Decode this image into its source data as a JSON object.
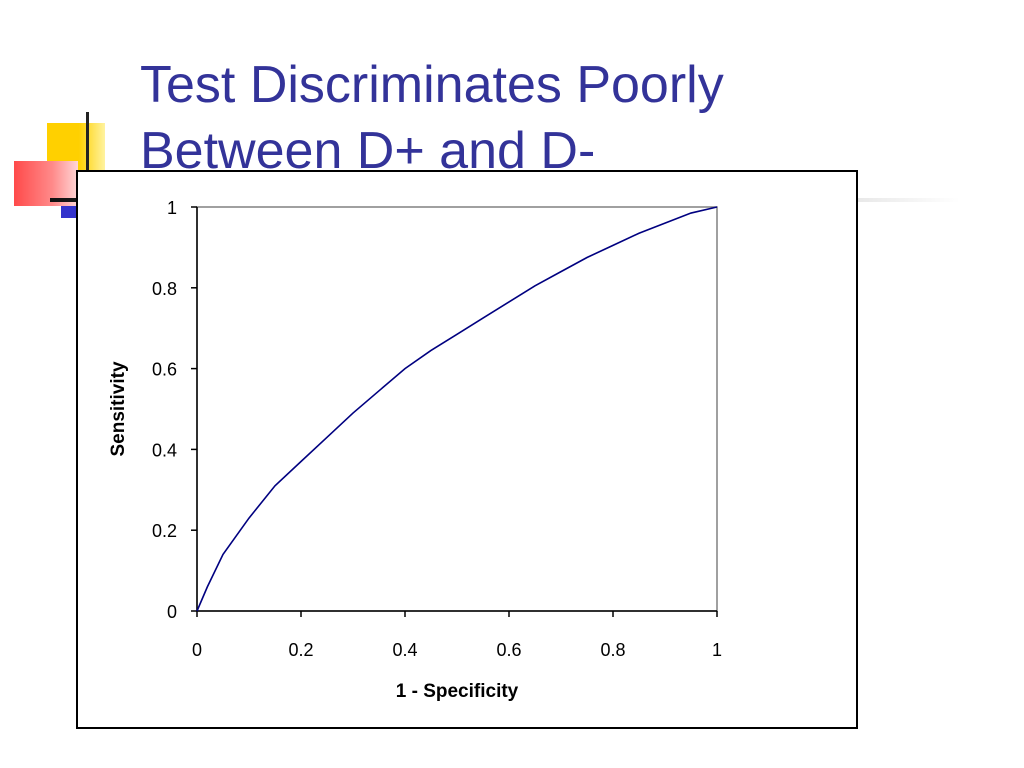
{
  "slide": {
    "title_line1": "Test Discriminates Poorly",
    "title_line2": "Between D+ and D-"
  },
  "colors": {
    "title": "#333399",
    "curve": "#000080",
    "plot_border": "#808080",
    "axis": "#000000"
  },
  "chart_data": {
    "type": "line",
    "title": "",
    "xlabel": "1 - Specificity",
    "ylabel": "Sensitivity",
    "xlim": [
      0,
      1
    ],
    "ylim": [
      0,
      1
    ],
    "x_ticks": [
      "0",
      "0.2",
      "0.4",
      "0.6",
      "0.8",
      "1"
    ],
    "y_ticks": [
      "0",
      "0.2",
      "0.4",
      "0.6",
      "0.8",
      "1"
    ],
    "grid": false,
    "legend": "none",
    "series": [
      {
        "x": [
          0,
          0.02,
          0.05,
          0.1,
          0.15,
          0.2,
          0.25,
          0.3,
          0.35,
          0.4,
          0.45,
          0.5,
          0.55,
          0.6,
          0.65,
          0.7,
          0.75,
          0.8,
          0.85,
          0.9,
          0.95,
          1.0
        ],
        "values": [
          0,
          0.06,
          0.14,
          0.23,
          0.31,
          0.37,
          0.43,
          0.49,
          0.545,
          0.6,
          0.645,
          0.685,
          0.725,
          0.765,
          0.805,
          0.84,
          0.875,
          0.905,
          0.935,
          0.96,
          0.985,
          1.0
        ]
      }
    ]
  }
}
